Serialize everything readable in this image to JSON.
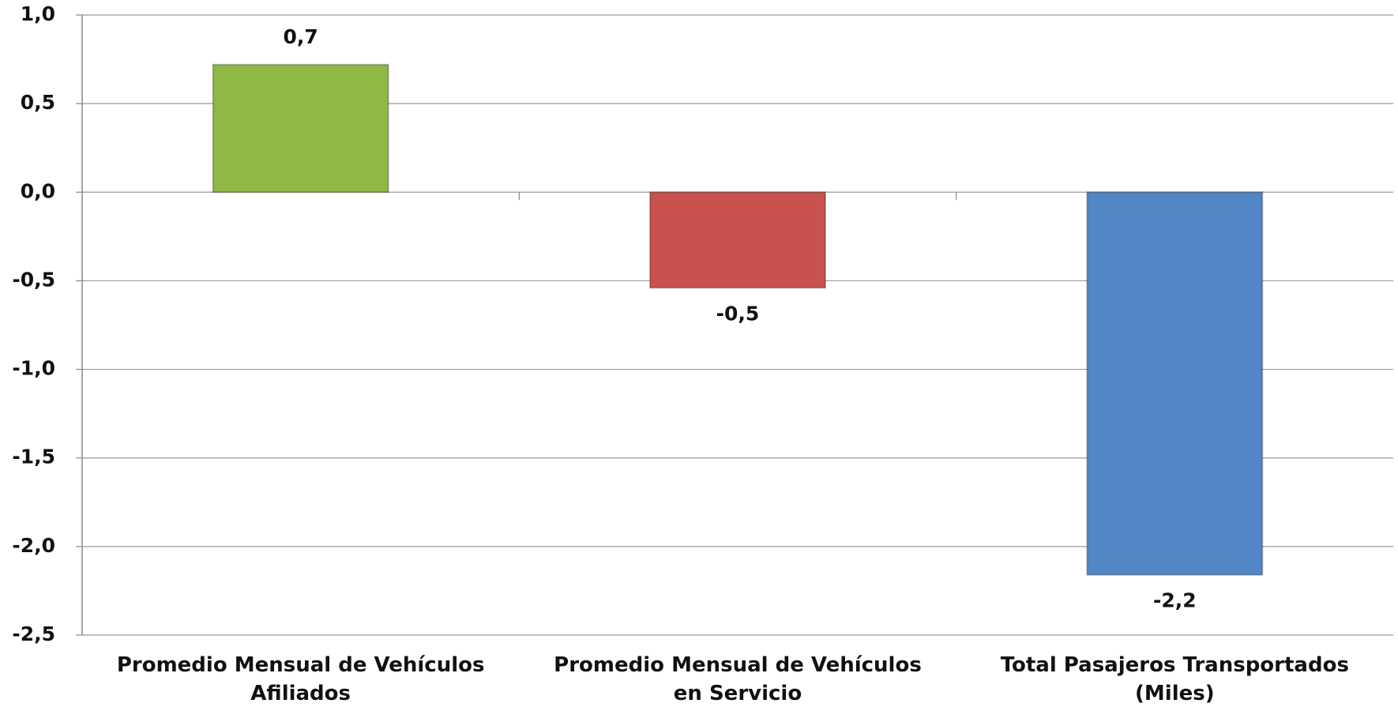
{
  "chart_data": {
    "type": "bar",
    "categories": [
      "Promedio Mensual de Vehículos\nAfiliados",
      "Promedio Mensual  de Vehículos\nen Servicio",
      "Total Pasajeros Transportados\n(Miles)"
    ],
    "values": [
      0.72,
      -0.54,
      -2.16
    ],
    "value_labels": [
      "0,7",
      "-0,5",
      "-2,2"
    ],
    "colors": [
      "#8fb845",
      "#c9524f",
      "#5286c6"
    ],
    "ylim": [
      -2.5,
      1.0
    ],
    "yticks": [
      {
        "value": 1.0,
        "label": "1,0"
      },
      {
        "value": 0.5,
        "label": "0,5"
      },
      {
        "value": 0.0,
        "label": "0,0"
      },
      {
        "value": -0.5,
        "label": "-0,5"
      },
      {
        "value": -1.0,
        "label": "-1,0"
      },
      {
        "value": -1.5,
        "label": "-1,5"
      },
      {
        "value": -2.0,
        "label": "-2,0"
      },
      {
        "value": -2.5,
        "label": "-2,5"
      }
    ],
    "grid": true
  }
}
